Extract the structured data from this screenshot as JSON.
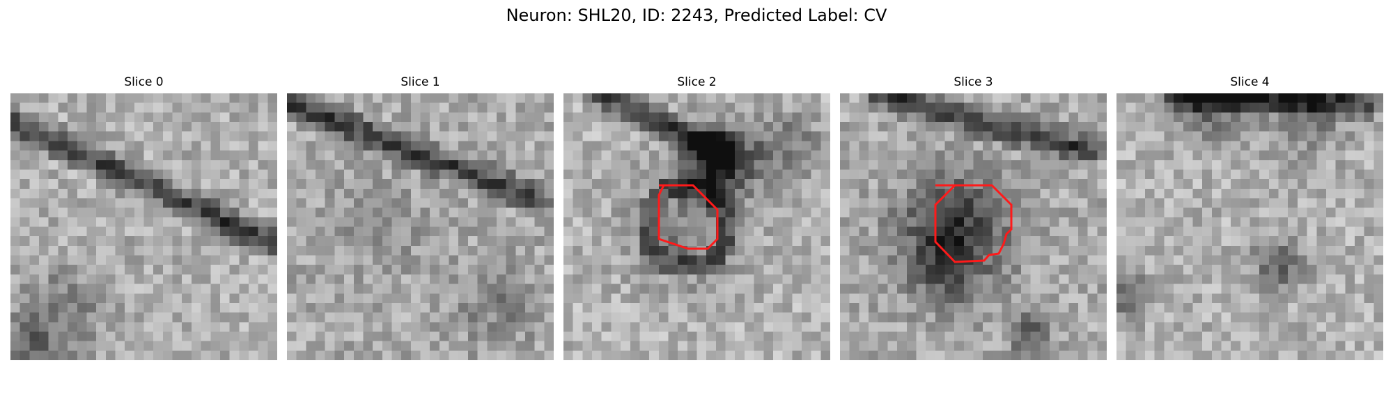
{
  "figure": {
    "title": "Neuron: SHL20, ID: 2243, Predicted Label: CV"
  },
  "panels": [
    {
      "title": "Slice 0",
      "has_contour": false
    },
    {
      "title": "Slice 1",
      "has_contour": false
    },
    {
      "title": "Slice 2",
      "has_contour": true
    },
    {
      "title": "Slice 3",
      "has_contour": true
    },
    {
      "title": "Slice 4",
      "has_contour": false
    }
  ],
  "colors": {
    "contour": "#ff1a1a",
    "background": "#ffffff"
  }
}
